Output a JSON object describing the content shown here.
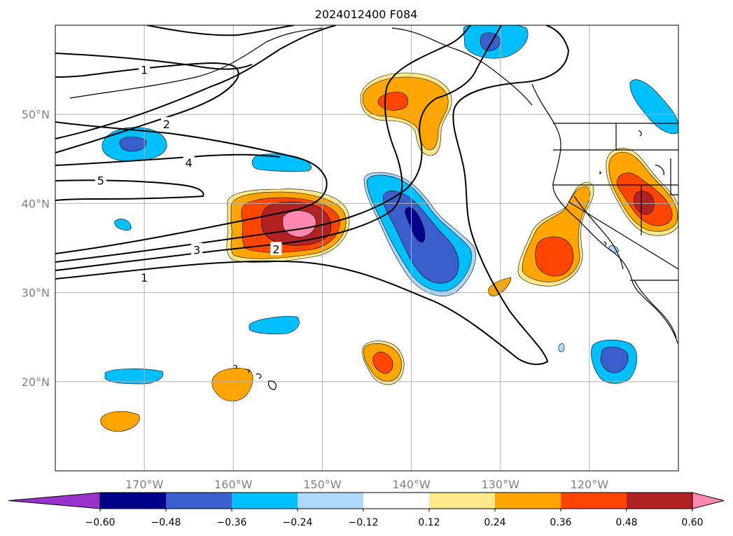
{
  "title": "2024012400 F084",
  "colors": {
    "background": "#ffffff",
    "grid": "#b0b0b0",
    "coastline": "#000000",
    "contour": "#000000"
  },
  "map": {
    "projection": "PlateCarree",
    "lon_range": [
      -180,
      -110
    ],
    "lat_range": [
      10,
      60
    ],
    "gridlines": true,
    "lon_ticks": [
      {
        "value": -170,
        "label": "170°W"
      },
      {
        "value": -160,
        "label": "160°W"
      },
      {
        "value": -150,
        "label": "150°W"
      },
      {
        "value": -140,
        "label": "140°W"
      },
      {
        "value": -130,
        "label": "130°W"
      },
      {
        "value": -120,
        "label": "120°W"
      }
    ],
    "lat_ticks": [
      {
        "value": 20,
        "label": "20°N"
      },
      {
        "value": 30,
        "label": "30°N"
      },
      {
        "value": 40,
        "label": "40°N"
      },
      {
        "value": 50,
        "label": "50°N"
      }
    ]
  },
  "colorbar": {
    "orientation": "horizontal",
    "extend": "both",
    "boundaries": [
      -0.72,
      -0.6,
      -0.48,
      -0.36,
      -0.24,
      -0.12,
      0.12,
      0.24,
      0.36,
      0.48,
      0.6,
      0.72
    ],
    "colors": [
      "#9932cc",
      "#00008b",
      "#3a5fcd",
      "#00bfff",
      "#add8f7",
      "#ffffff",
      "#ffe88a",
      "#ffa500",
      "#ff4500",
      "#b22222",
      "#ff88b0",
      "#ff88b0"
    ],
    "tick_labels": [
      "−0.60",
      "−0.48",
      "−0.36",
      "−0.24",
      "−0.12",
      "0.12",
      "0.24",
      "0.36",
      "0.48",
      "0.60"
    ]
  },
  "contour_labels": [
    {
      "text": "1",
      "lon": -170,
      "lat": 55
    },
    {
      "text": "2",
      "lon": -167.5,
      "lat": 48.9
    },
    {
      "text": "4",
      "lon": -165,
      "lat": 44.6
    },
    {
      "text": "5",
      "lon": -174.9,
      "lat": 42.6
    },
    {
      "text": "3",
      "lon": -164.1,
      "lat": 34.8
    },
    {
      "text": "2",
      "lon": -155.2,
      "lat": 34.9
    },
    {
      "text": "1",
      "lon": -170,
      "lat": 31.7
    }
  ],
  "chart_data": {
    "type": "heatmap",
    "title": "2024012400 F084",
    "xlim": [
      -180,
      -110
    ],
    "ylim": [
      10,
      60
    ],
    "anomaly_features": [
      {
        "sign": "positive",
        "peak": 0.62,
        "center": [
          -153.5,
          37.5
        ]
      },
      {
        "sign": "positive",
        "peak": 0.4,
        "center": [
          -140.5,
          51.5
        ]
      },
      {
        "sign": "positive",
        "peak": 0.4,
        "center": [
          -123.5,
          34.0
        ]
      },
      {
        "sign": "positive",
        "peak": 0.5,
        "center": [
          -114.5,
          40.0
        ]
      },
      {
        "sign": "positive",
        "peak": 0.4,
        "center": [
          -143.5,
          22.0
        ]
      },
      {
        "sign": "positive",
        "peak": 0.24,
        "center": [
          -160.0,
          19.8
        ]
      },
      {
        "sign": "positive",
        "peak": 0.24,
        "center": [
          -172.5,
          15.8
        ]
      },
      {
        "sign": "positive",
        "peak": 0.24,
        "center": [
          -130.0,
          30.5
        ]
      },
      {
        "sign": "negative",
        "peak": -0.5,
        "center": [
          -139.0,
          37.0
        ]
      },
      {
        "sign": "negative",
        "peak": -0.4,
        "center": [
          -130.0,
          58.0
        ]
      },
      {
        "sign": "negative",
        "peak": -0.4,
        "center": [
          -171.0,
          46.5
        ]
      },
      {
        "sign": "negative",
        "peak": -0.4,
        "center": [
          -117.5,
          22.5
        ]
      },
      {
        "sign": "negative",
        "peak": -0.24,
        "center": [
          -112.5,
          50.0
        ]
      },
      {
        "sign": "negative",
        "peak": -0.24,
        "center": [
          -153.0,
          44.5
        ]
      },
      {
        "sign": "negative",
        "peak": -0.24,
        "center": [
          -155.0,
          26.5
        ]
      },
      {
        "sign": "negative",
        "peak": -0.24,
        "center": [
          -171.5,
          20.5
        ]
      }
    ],
    "contour_levels": [
      1,
      2,
      3,
      4,
      5
    ]
  }
}
